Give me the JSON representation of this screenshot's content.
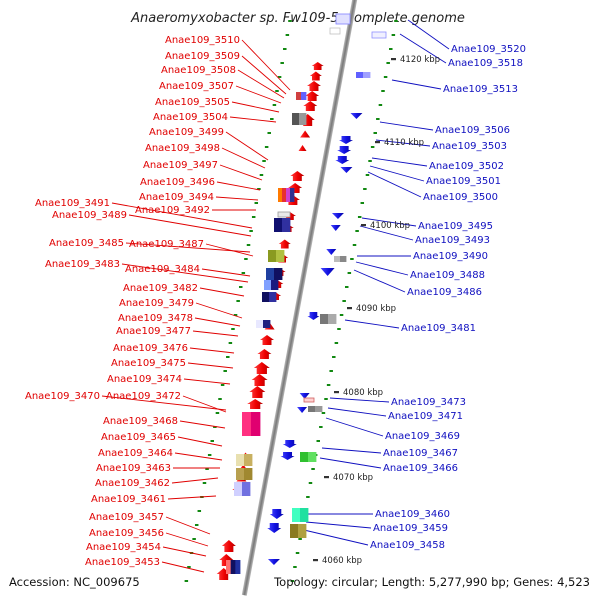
{
  "title": "Anaeromyxobacter sp. Fw109-5, complete genome",
  "footer": {
    "accession": "Accession: NC_009675",
    "topology": "Topology: circular; Length: 5,277,990 bp; Genes: 4,523"
  },
  "colors": {
    "forward": "#e00000",
    "reverse": "#1010c0",
    "backbone": "#999999",
    "tick": "#118811"
  },
  "kbp_marks": [
    "4120 kbp",
    "4110 kbp",
    "4100 kbp",
    "4090 kbp",
    "4080 kbp",
    "4070 kbp",
    "4060 kbp"
  ],
  "forward_genes": [
    "Anae109_3510",
    "Anae109_3509",
    "Anae109_3508",
    "Anae109_3507",
    "Anae109_3505",
    "Anae109_3504",
    "Anae109_3499",
    "Anae109_3498",
    "Anae109_3497",
    "Anae109_3496",
    "Anae109_3494",
    "Anae109_3491",
    "Anae109_3492",
    "Anae109_3489",
    "Anae109_3485",
    "Anae109_3487",
    "Anae109_3483",
    "Anae109_3484",
    "Anae109_3482",
    "Anae109_3479",
    "Anae109_3478",
    "Anae109_3477",
    "Anae109_3476",
    "Anae109_3475",
    "Anae109_3474",
    "Anae109_3470",
    "Anae109_3472",
    "Anae109_3468",
    "Anae109_3465",
    "Anae109_3464",
    "Anae109_3463",
    "Anae109_3462",
    "Anae109_3461",
    "Anae109_3457",
    "Anae109_3456",
    "Anae109_3454",
    "Anae109_3453"
  ],
  "reverse_genes": [
    "Anae109_3520",
    "Anae109_3518",
    "Anae109_3513",
    "Anae109_3506",
    "Anae109_3503",
    "Anae109_3502",
    "Anae109_3501",
    "Anae109_3500",
    "Anae109_3495",
    "Anae109_3493",
    "Anae109_3490",
    "Anae109_3488",
    "Anae109_3486",
    "Anae109_3481",
    "Anae109_3473",
    "Anae109_3471",
    "Anae109_3469",
    "Anae109_3467",
    "Anae109_3466",
    "Anae109_3460",
    "Anae109_3459",
    "Anae109_3458"
  ]
}
